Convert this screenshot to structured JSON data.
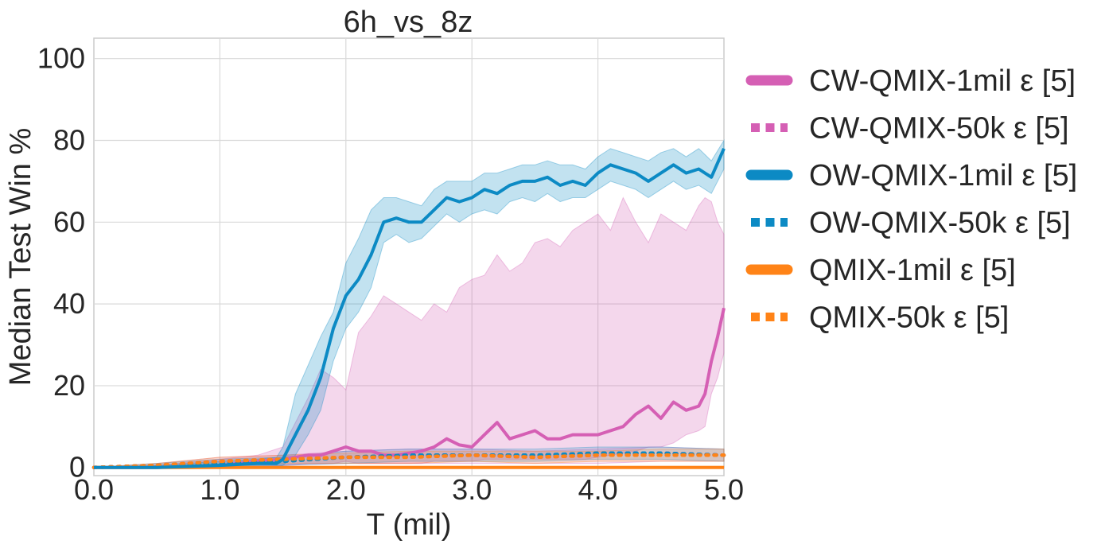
{
  "chart_data": {
    "type": "line",
    "title": "6h_vs_8z",
    "xlabel": "T (mil)",
    "ylabel": "Median Test Win %",
    "xlim": [
      0,
      5
    ],
    "ylim": [
      -2,
      105
    ],
    "xticks": [
      "0.0",
      "1.0",
      "2.0",
      "3.0",
      "4.0",
      "5.0"
    ],
    "yticks": [
      "0",
      "20",
      "40",
      "60",
      "80",
      "100"
    ],
    "grid": true,
    "legend_position": "outside right",
    "series": [
      {
        "name": "CW-QMIX-1mil ε [5]",
        "style": "solid",
        "color": "#d55fb4",
        "x": [
          0.0,
          0.5,
          1.0,
          1.3,
          1.5,
          1.7,
          1.8,
          1.9,
          2.0,
          2.1,
          2.2,
          2.3,
          2.4,
          2.5,
          2.6,
          2.7,
          2.8,
          2.9,
          3.0,
          3.1,
          3.2,
          3.3,
          3.4,
          3.5,
          3.6,
          3.7,
          3.8,
          3.9,
          4.0,
          4.1,
          4.2,
          4.3,
          4.4,
          4.5,
          4.6,
          4.7,
          4.8,
          4.85,
          4.9,
          4.95,
          5.0
        ],
        "y": [
          0,
          0,
          0.5,
          1.5,
          2,
          3,
          3,
          4,
          5,
          4,
          4,
          3,
          3,
          3.5,
          4,
          5,
          7,
          5.5,
          5,
          8,
          11,
          7,
          8,
          9,
          7,
          7,
          8,
          8,
          8,
          9,
          10,
          13,
          15,
          12,
          16,
          14,
          15,
          18,
          26,
          32,
          39
        ],
        "lo": [
          0,
          0,
          0,
          0,
          0.5,
          1,
          1,
          1,
          1.5,
          1,
          1,
          1,
          1,
          1,
          1,
          1.5,
          1.5,
          1.5,
          1.5,
          2,
          2,
          2,
          2,
          2,
          2,
          2,
          2,
          2,
          2.5,
          3,
          3.5,
          4,
          5,
          5,
          6,
          8,
          9,
          10,
          18,
          22,
          28
        ],
        "hi": [
          0,
          0.5,
          2,
          3,
          5,
          17,
          24,
          22,
          19,
          33,
          37,
          42,
          40,
          38,
          36,
          40,
          38,
          44,
          46,
          47,
          52,
          48,
          50,
          55,
          56,
          54,
          58,
          60,
          62,
          58,
          66,
          60,
          55,
          62,
          60,
          58,
          64,
          66,
          65,
          60,
          57
        ]
      },
      {
        "name": "CW-QMIX-50k ε [5]",
        "style": "dotted",
        "color": "#d55fb4",
        "x": [
          0.0,
          0.5,
          1.0,
          1.5,
          2.0,
          2.5,
          3.0,
          3.5,
          4.0,
          4.5,
          5.0
        ],
        "y": [
          0,
          0.5,
          1.5,
          2,
          2.5,
          3,
          3,
          2.5,
          3,
          3.5,
          3
        ],
        "lo": [
          0,
          0,
          0.5,
          0.5,
          1,
          1,
          1,
          1,
          1,
          1.5,
          1.5
        ],
        "hi": [
          0,
          1,
          2.5,
          3,
          4,
          4.5,
          4.5,
          4,
          4.5,
          5,
          4.5
        ]
      },
      {
        "name": "OW-QMIX-1mil ε [5]",
        "style": "solid",
        "color": "#0c8ac4",
        "x": [
          0.0,
          0.5,
          1.0,
          1.3,
          1.45,
          1.5,
          1.6,
          1.7,
          1.8,
          1.9,
          2.0,
          2.1,
          2.2,
          2.3,
          2.4,
          2.5,
          2.6,
          2.7,
          2.8,
          2.9,
          3.0,
          3.1,
          3.2,
          3.3,
          3.4,
          3.5,
          3.6,
          3.7,
          3.8,
          3.9,
          4.0,
          4.1,
          4.2,
          4.3,
          4.4,
          4.5,
          4.6,
          4.7,
          4.8,
          4.9,
          5.0
        ],
        "y": [
          0,
          0,
          0.5,
          1,
          1,
          2,
          8,
          14,
          22,
          34,
          42,
          46,
          52,
          60,
          61,
          60,
          60,
          63,
          66,
          65,
          66,
          68,
          67,
          69,
          70,
          70,
          71,
          69,
          70,
          69,
          72,
          74,
          73,
          72,
          70,
          72,
          74,
          72,
          73,
          71,
          78
        ],
        "lo": [
          0,
          0,
          0,
          0,
          0,
          0.5,
          3,
          8,
          14,
          26,
          34,
          38,
          44,
          55,
          57,
          55,
          56,
          59,
          62,
          60,
          62,
          63,
          62,
          65,
          66,
          65,
          67,
          65,
          66,
          66,
          68,
          70,
          69,
          68,
          66,
          68,
          70,
          68,
          69,
          67,
          73
        ],
        "hi": [
          0,
          0.5,
          1.5,
          2,
          2.5,
          5,
          18,
          25,
          32,
          38,
          50,
          56,
          63,
          66,
          66,
          65,
          64,
          68,
          70,
          70,
          70,
          72,
          72,
          73,
          74,
          74,
          75,
          74,
          74,
          73,
          76,
          78,
          77,
          76,
          75,
          77,
          78,
          76,
          78,
          75,
          80
        ]
      },
      {
        "name": "OW-QMIX-50k ε [5]",
        "style": "dotted",
        "color": "#0c8ac4",
        "x": [
          0.0,
          0.5,
          1.0,
          1.5,
          2.0,
          2.5,
          3.0,
          3.5,
          4.0,
          4.5,
          5.0
        ],
        "y": [
          0,
          0.5,
          1,
          1.5,
          2.5,
          3,
          3,
          3,
          3.5,
          3.5,
          3
        ],
        "lo": [
          0,
          0,
          0.5,
          0.5,
          1,
          1.5,
          1.5,
          1.5,
          2,
          2,
          1.5
        ],
        "hi": [
          0,
          1,
          2,
          2.5,
          4,
          4.5,
          4.5,
          4.5,
          5,
          5,
          4.5
        ]
      },
      {
        "name": "QMIX-1mil ε [5]",
        "style": "solid",
        "color": "#ff8317",
        "x": [
          0.0,
          1.0,
          2.0,
          3.0,
          4.0,
          5.0
        ],
        "y": [
          0,
          0,
          0,
          0,
          0,
          0
        ],
        "lo": [
          0,
          0,
          0,
          0,
          0,
          0
        ],
        "hi": [
          0,
          0.3,
          0.3,
          0.3,
          0.3,
          0.3
        ]
      },
      {
        "name": "QMIX-50k ε [5]",
        "style": "dotted",
        "color": "#ff8317",
        "x": [
          0.0,
          0.5,
          1.0,
          1.5,
          2.0,
          2.5,
          3.0,
          3.5,
          4.0,
          4.5,
          5.0
        ],
        "y": [
          0,
          0.5,
          1.5,
          2,
          2.5,
          2.5,
          3,
          2.5,
          3,
          3,
          3
        ],
        "lo": [
          0,
          0,
          0.5,
          1,
          1,
          1,
          1.5,
          1,
          1.5,
          1.5,
          1.5
        ],
        "hi": [
          0,
          1,
          2.5,
          3,
          3.5,
          4,
          4,
          4,
          4,
          4.5,
          4.5
        ]
      }
    ]
  }
}
